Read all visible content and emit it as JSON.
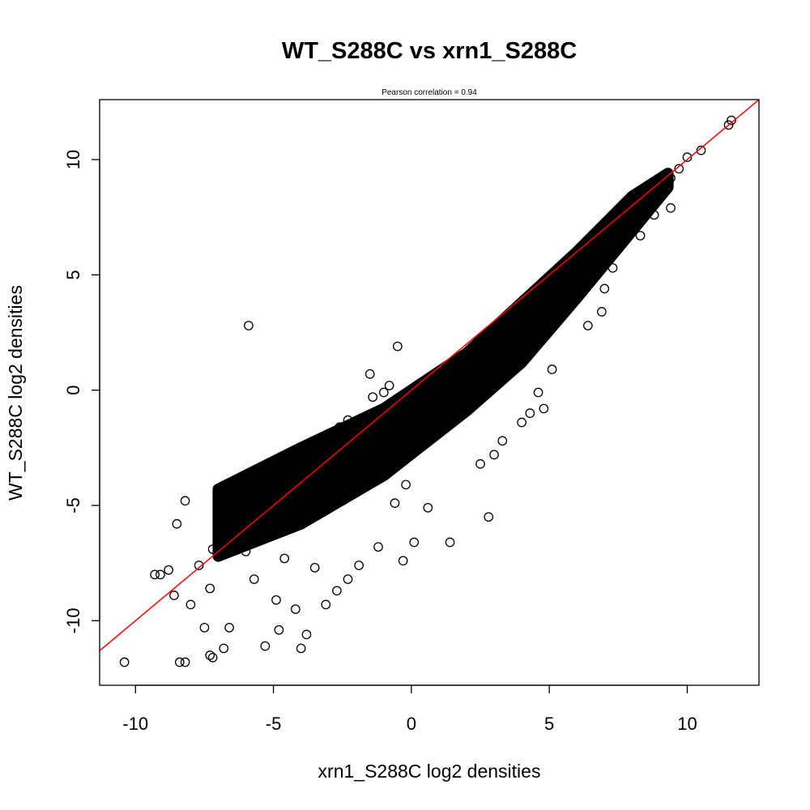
{
  "chart_data": {
    "type": "scatter",
    "title": "WT_S288C vs xrn1_S288C",
    "subtitle": "Pearson correlation =  0.94",
    "xlabel": "xrn1_S288C log2 densities",
    "ylabel": "WT_S288C log2 densities",
    "xlim": [
      -11.3,
      12.6
    ],
    "ylim": [
      -12.8,
      12.6
    ],
    "x_ticks": [
      -10,
      -5,
      0,
      5,
      10
    ],
    "y_ticks": [
      -10,
      -5,
      0,
      5,
      10
    ],
    "x_tick_labels": [
      "-10",
      "-5",
      "0",
      "5",
      "10"
    ],
    "y_tick_labels": [
      "-10",
      "-5",
      "0",
      "5",
      "10"
    ],
    "grid": false,
    "marker": "open-circle",
    "point_color": "#000000",
    "fit_line": {
      "color": "#ff0000",
      "slope": 1.0,
      "intercept": 0.0
    },
    "points": [
      [
        11.6,
        11.7
      ],
      [
        11.5,
        11.5
      ],
      [
        10.5,
        10.4
      ],
      [
        10.0,
        10.1
      ],
      [
        9.7,
        9.6
      ],
      [
        9.4,
        9.2
      ],
      [
        9.1,
        8.9
      ],
      [
        9.4,
        7.9
      ],
      [
        8.8,
        7.6
      ],
      [
        8.3,
        6.7
      ],
      [
        7.3,
        5.3
      ],
      [
        7.0,
        4.4
      ],
      [
        6.9,
        3.4
      ],
      [
        6.4,
        2.8
      ],
      [
        5.1,
        0.9
      ],
      [
        4.6,
        -0.1
      ],
      [
        4.8,
        -0.8
      ],
      [
        4.3,
        -1.0
      ],
      [
        4.0,
        -1.4
      ],
      [
        3.3,
        -2.2
      ],
      [
        3.0,
        -2.8
      ],
      [
        2.5,
        -3.2
      ],
      [
        2.8,
        -5.5
      ],
      [
        1.4,
        -6.6
      ],
      [
        0.1,
        -6.6
      ],
      [
        -0.3,
        -7.4
      ],
      [
        0.6,
        -5.1
      ],
      [
        -0.6,
        -4.9
      ],
      [
        -0.2,
        -4.1
      ],
      [
        -5.9,
        2.8
      ],
      [
        -0.5,
        1.9
      ],
      [
        -1.5,
        0.7
      ],
      [
        -0.8,
        0.2
      ],
      [
        -1.0,
        -0.1
      ],
      [
        -1.4,
        -0.3
      ],
      [
        -2.3,
        -1.3
      ],
      [
        -2.6,
        -1.6
      ],
      [
        -3.4,
        -2.3
      ],
      [
        -4.4,
        -2.9
      ],
      [
        -5.1,
        -3.8
      ],
      [
        -5.5,
        -4.4
      ],
      [
        -6.0,
        -4.7
      ],
      [
        -6.8,
        -4.2
      ],
      [
        -6.6,
        -4.6
      ],
      [
        -8.2,
        -4.8
      ],
      [
        -6.8,
        -5.3
      ],
      [
        -8.5,
        -5.8
      ],
      [
        -7.2,
        -6.9
      ],
      [
        -7.7,
        -7.6
      ],
      [
        -8.8,
        -7.8
      ],
      [
        -9.3,
        -8.0
      ],
      [
        -9.1,
        -8.0
      ],
      [
        -8.6,
        -8.9
      ],
      [
        -8.0,
        -9.3
      ],
      [
        -7.3,
        -8.6
      ],
      [
        -7.5,
        -10.3
      ],
      [
        -6.6,
        -10.3
      ],
      [
        -5.3,
        -11.1
      ],
      [
        -4.0,
        -11.2
      ],
      [
        -3.8,
        -10.6
      ],
      [
        -4.8,
        -10.4
      ],
      [
        -6.8,
        -11.2
      ],
      [
        -7.3,
        -11.5
      ],
      [
        -7.2,
        -11.6
      ],
      [
        -8.4,
        -11.8
      ],
      [
        -8.2,
        -11.8
      ],
      [
        -10.4,
        -11.8
      ],
      [
        -3.1,
        -9.3
      ],
      [
        -2.7,
        -8.7
      ],
      [
        -2.3,
        -8.2
      ],
      [
        -1.9,
        -7.6
      ],
      [
        -1.2,
        -6.8
      ],
      [
        -4.9,
        -9.1
      ],
      [
        -4.2,
        -9.5
      ],
      [
        -5.7,
        -8.2
      ],
      [
        -6.0,
        -7.0
      ],
      [
        -4.6,
        -7.3
      ],
      [
        -3.5,
        -7.7
      ]
    ]
  }
}
